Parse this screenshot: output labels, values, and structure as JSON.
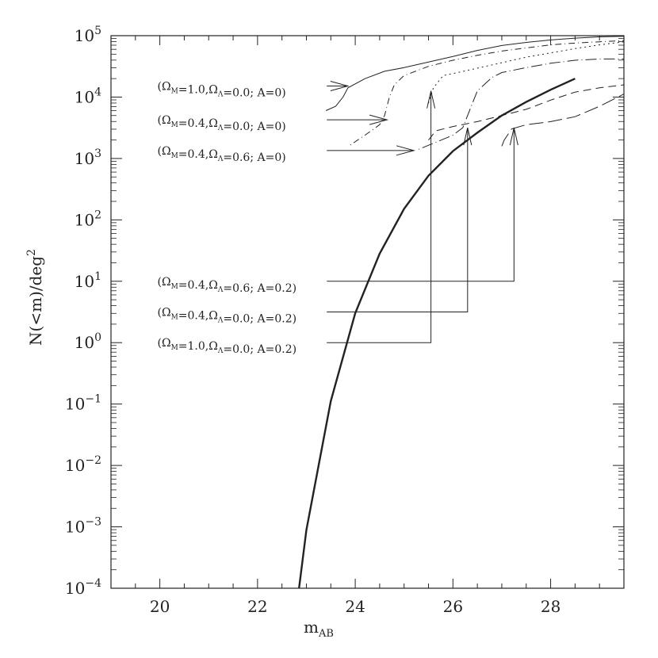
{
  "chart_data": {
    "type": "line",
    "title": "",
    "xlabel": "m",
    "xlabel_sub": "AB",
    "ylabel": "N(<m)/deg",
    "ylabel_sup": "2",
    "xlim": [
      19,
      29.5
    ],
    "ylim_log10": [
      -4,
      5
    ],
    "log_y": true,
    "grid": false,
    "x_ticks": [
      20,
      22,
      24,
      26,
      28
    ],
    "y_ticks": [
      {
        "exp": -4,
        "label_base": "10",
        "label_exp": "−4"
      },
      {
        "exp": -3,
        "label_base": "10",
        "label_exp": "−3"
      },
      {
        "exp": -2,
        "label_base": "10",
        "label_exp": "−2"
      },
      {
        "exp": -1,
        "label_base": "10",
        "label_exp": "−1"
      },
      {
        "exp": 0,
        "label_base": "10",
        "label_exp": "0"
      },
      {
        "exp": 1,
        "label_base": "10",
        "label_exp": "1"
      },
      {
        "exp": 2,
        "label_base": "10",
        "label_exp": "2"
      },
      {
        "exp": 3,
        "label_base": "10",
        "label_exp": "3"
      },
      {
        "exp": 4,
        "label_base": "10",
        "label_exp": "4"
      },
      {
        "exp": 5,
        "label_base": "10",
        "label_exp": "5"
      }
    ],
    "series": [
      {
        "style": "thick",
        "points": [
          [
            22.85,
            -4
          ],
          [
            23,
            -3.05
          ],
          [
            23.5,
            -0.95
          ],
          [
            24,
            0.48
          ],
          [
            24.5,
            1.45
          ],
          [
            25,
            2.18
          ],
          [
            25.5,
            2.72
          ],
          [
            26,
            3.12
          ],
          [
            26.5,
            3.42
          ],
          [
            27,
            3.7
          ],
          [
            27.5,
            3.92
          ],
          [
            28,
            4.12
          ],
          [
            28.5,
            4.3
          ]
        ]
      },
      {
        "style": "solid",
        "points": [
          [
            23.4,
            3.78
          ],
          [
            23.6,
            3.85
          ],
          [
            23.75,
            4.0
          ],
          [
            23.85,
            4.15
          ],
          [
            24.2,
            4.3
          ],
          [
            24.6,
            4.42
          ],
          [
            25.0,
            4.48
          ],
          [
            25.5,
            4.57
          ],
          [
            26.0,
            4.66
          ],
          [
            26.5,
            4.76
          ],
          [
            27.0,
            4.84
          ],
          [
            27.5,
            4.89
          ],
          [
            28.0,
            4.93
          ],
          [
            28.5,
            4.96
          ],
          [
            29.0,
            4.98
          ],
          [
            29.5,
            4.99
          ]
        ]
      },
      {
        "style": "dotted",
        "points": [
          [
            25.5,
            3.9
          ],
          [
            25.6,
            4.15
          ],
          [
            25.8,
            4.35
          ],
          [
            26.1,
            4.4
          ],
          [
            26.5,
            4.47
          ],
          [
            27.0,
            4.56
          ],
          [
            27.5,
            4.65
          ],
          [
            28.0,
            4.72
          ],
          [
            28.5,
            4.79
          ],
          [
            29.0,
            4.85
          ],
          [
            29.5,
            4.9
          ]
        ]
      },
      {
        "style": "dotdash",
        "points": [
          [
            23.9,
            3.22
          ],
          [
            24.2,
            3.38
          ],
          [
            24.5,
            3.55
          ],
          [
            24.6,
            3.7
          ],
          [
            24.7,
            4.0
          ],
          [
            24.8,
            4.2
          ],
          [
            25.0,
            4.35
          ],
          [
            25.5,
            4.5
          ],
          [
            26.0,
            4.6
          ],
          [
            26.5,
            4.68
          ],
          [
            27.0,
            4.75
          ],
          [
            27.5,
            4.8
          ],
          [
            28.0,
            4.85
          ],
          [
            28.5,
            4.88
          ],
          [
            29.0,
            4.9
          ],
          [
            29.5,
            4.92
          ]
        ]
      },
      {
        "style": "dotlongdash",
        "points": [
          [
            25.3,
            3.15
          ],
          [
            25.7,
            3.28
          ],
          [
            26.0,
            3.38
          ],
          [
            26.2,
            3.5
          ],
          [
            26.35,
            3.8
          ],
          [
            26.5,
            4.1
          ],
          [
            26.8,
            4.32
          ],
          [
            27.0,
            4.4
          ],
          [
            27.5,
            4.48
          ],
          [
            28.0,
            4.55
          ],
          [
            28.5,
            4.6
          ],
          [
            29.0,
            4.62
          ],
          [
            29.5,
            4.62
          ]
        ]
      },
      {
        "style": "dashed",
        "points": [
          [
            25.5,
            3.3
          ],
          [
            25.65,
            3.45
          ],
          [
            26.0,
            3.52
          ],
          [
            26.5,
            3.6
          ],
          [
            27.0,
            3.7
          ],
          [
            27.5,
            3.8
          ],
          [
            28.0,
            3.95
          ],
          [
            28.5,
            4.08
          ],
          [
            29.0,
            4.15
          ],
          [
            29.5,
            4.2
          ]
        ]
      },
      {
        "style": "longdash",
        "points": [
          [
            27.0,
            3.2
          ],
          [
            27.05,
            3.3
          ],
          [
            27.2,
            3.48
          ],
          [
            27.5,
            3.55
          ],
          [
            28.0,
            3.6
          ],
          [
            28.5,
            3.68
          ],
          [
            29.0,
            3.85
          ],
          [
            29.5,
            4.05
          ]
        ]
      }
    ],
    "annotations": [
      {
        "label": "(Ω<sub>M</sub>=1.0,Ω<sub>Λ</sub>=0.0; A=0)",
        "text": "(ΩM=1.0,ΩΛ=0.0; A=0)",
        "label_at": [
          19.3,
          4.18
        ],
        "arrow_from": [
          22.85,
          4.18
        ],
        "arrow_to": [
          23.85,
          4.15
        ],
        "kind": "horizontal"
      },
      {
        "label": "(ΩM=0.4,ΩΛ=0.0; A=0)",
        "text": "(ΩM=0.4,ΩΛ=0.0; A=0)",
        "label_at": [
          19.3,
          3.63
        ],
        "arrow_from": [
          22.85,
          3.63
        ],
        "arrow_to": [
          24.65,
          3.63
        ],
        "kind": "horizontal"
      },
      {
        "label": "(ΩM=0.4,ΩΛ=0.6; A=0)",
        "text": "(ΩM=0.4,ΩΛ=0.6; A=0)",
        "label_at": [
          19.3,
          3.13
        ],
        "arrow_from": [
          22.85,
          3.13
        ],
        "arrow_to": [
          25.2,
          3.13
        ],
        "kind": "horizontal"
      },
      {
        "text": "(ΩM=0.4,ΩΛ=0.6; A=0.2)",
        "label_at": [
          19.3,
          1.0
        ],
        "arrow_from": [
          22.85,
          1.0
        ],
        "corner": [
          27.25,
          1.0
        ],
        "arrow_to": [
          27.25,
          3.5
        ],
        "kind": "elbow"
      },
      {
        "text": "(ΩM=0.4,ΩΛ=0.0; A=0.2)",
        "label_at": [
          19.3,
          0.5
        ],
        "arrow_from": [
          22.85,
          0.5
        ],
        "corner": [
          26.3,
          0.5
        ],
        "arrow_to": [
          26.3,
          3.5
        ],
        "kind": "elbow"
      },
      {
        "text": "(ΩM=1.0,ΩΛ=0.0; A=0.2)",
        "label_at": [
          19.3,
          0.0
        ],
        "arrow_from": [
          22.85,
          0.0
        ],
        "corner": [
          25.55,
          0.0
        ],
        "arrow_to": [
          25.55,
          4.1
        ],
        "kind": "elbow"
      }
    ]
  }
}
